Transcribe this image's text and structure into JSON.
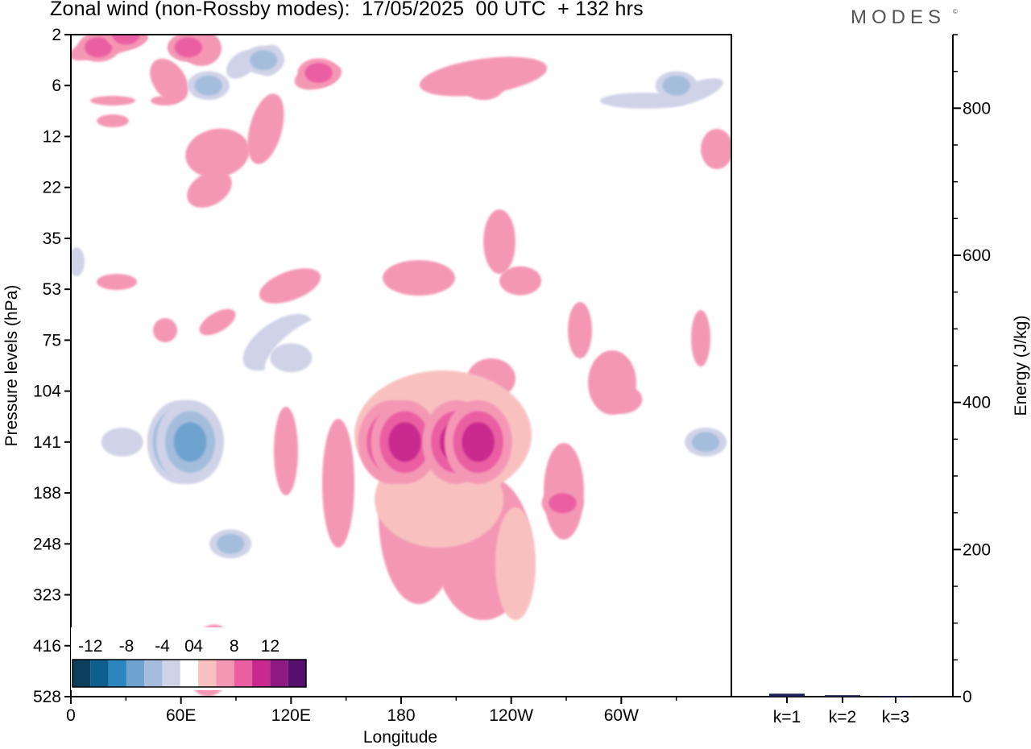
{
  "title": "Zonal wind (non-Rossby modes):  17/05/2025  00 UTC  + 132 hrs",
  "brand": "MODES",
  "brand_mark": "©",
  "chart_data": [
    {
      "type": "heatmap",
      "title": "Zonal wind (non-Rossby modes):  17/05/2025  00 UTC  + 132 hrs",
      "xlabel": "Longitude",
      "ylabel": "Pressure levels (hPa)",
      "x_ticks": [
        "0",
        "60E",
        "120E",
        "180",
        "120W",
        "60W"
      ],
      "x_tick_values": [
        0,
        60,
        120,
        180,
        240,
        300
      ],
      "xlim": [
        0,
        360
      ],
      "y_ticks": [
        "2",
        "6",
        "12",
        "22",
        "35",
        "53",
        "75",
        "104",
        "141",
        "188",
        "248",
        "323",
        "416",
        "528"
      ],
      "y_scale": "nonuniform pressure levels, top to bottom",
      "colorbar": {
        "tick_labels": [
          "-12",
          "-8",
          "-4",
          "0",
          "4",
          "8",
          "12"
        ],
        "levels": [
          -14,
          -12,
          -10,
          -8,
          -6,
          -4,
          -2,
          2,
          4,
          6,
          8,
          10,
          12,
          14
        ],
        "colors": [
          "#0d3f5b",
          "#0f5f8e",
          "#2b86bd",
          "#6ea3cf",
          "#a4bddd",
          "#d0d3e8",
          "#ffffff",
          "#f8c1c0",
          "#f497b5",
          "#ea5fa2",
          "#c8298e",
          "#8e1a86",
          "#55106e"
        ],
        "placement": "bottom-left inside plot"
      },
      "features": [
        {
          "lon": 15,
          "level": "3",
          "value": 6
        },
        {
          "lon": 30,
          "level": "2",
          "value": 6
        },
        {
          "lon": 64,
          "level": "3",
          "value": 6
        },
        {
          "lon": 75,
          "level": "6",
          "value": -6
        },
        {
          "lon": 105,
          "level": "4",
          "value": -6
        },
        {
          "lon": 135,
          "level": "5",
          "value": 6
        },
        {
          "lon": 225,
          "level": "6",
          "value": 4
        },
        {
          "lon": 330,
          "level": "6",
          "value": -6
        },
        {
          "lon": 80,
          "level": "16",
          "value": 4
        },
        {
          "lon": 60,
          "level": "141",
          "value": -12
        },
        {
          "lon": 65,
          "level": "141",
          "value": -9
        },
        {
          "lon": 28,
          "level": "141",
          "value": -4
        },
        {
          "lon": 87,
          "level": "248",
          "value": -6
        },
        {
          "lon": 120,
          "level": "85",
          "value": -4
        },
        {
          "lon": 175,
          "level": "141",
          "value": 8
        },
        {
          "lon": 182,
          "level": "141",
          "value": 8
        },
        {
          "lon": 210,
          "level": "141",
          "value": 8
        },
        {
          "lon": 222,
          "level": "141",
          "value": 8
        },
        {
          "lon": 245,
          "level": "50",
          "value": 4
        },
        {
          "lon": 268,
          "level": "200",
          "value": 6
        },
        {
          "lon": 300,
          "level": "110",
          "value": 5
        },
        {
          "lon": 346,
          "level": "141",
          "value": -6
        }
      ]
    },
    {
      "type": "bar",
      "ylabel": "Energy (J/kg)",
      "categories": [
        "k=1",
        "k=2",
        "k=3"
      ],
      "values": [
        4,
        2,
        1
      ],
      "ylim": [
        0,
        900
      ],
      "y_ticks": [
        0,
        200,
        400,
        600,
        800
      ],
      "bar_color": "#1b1f5a"
    }
  ]
}
